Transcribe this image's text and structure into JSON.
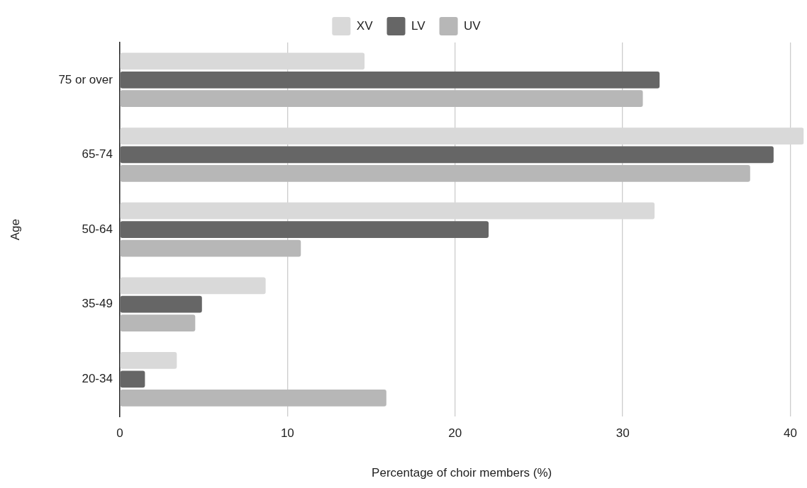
{
  "chart_data": {
    "type": "bar",
    "orientation": "horizontal",
    "xlabel": "Percentage of choir members (%)",
    "ylabel": "Age",
    "categories": [
      "75 or over",
      "65-74",
      "50-64",
      "35-49",
      "20-34"
    ],
    "series": [
      {
        "name": "XV",
        "color": "#d9d9d9",
        "values": [
          14.6,
          40.8,
          31.9,
          8.7,
          3.4
        ]
      },
      {
        "name": "LV",
        "color": "#666666",
        "values": [
          32.2,
          39.0,
          22.0,
          4.9,
          1.5
        ]
      },
      {
        "name": "UV",
        "color": "#b7b7b7",
        "values": [
          31.2,
          37.6,
          10.8,
          4.5,
          15.9
        ]
      }
    ],
    "xlim": [
      0,
      40.8
    ],
    "xticks": [
      0,
      10,
      20,
      30,
      40
    ],
    "grid": "x",
    "legend": "top"
  }
}
